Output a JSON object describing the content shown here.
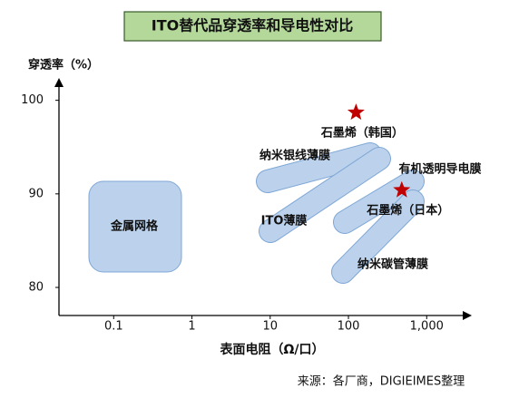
{
  "chart_data": {
    "type": "scatter",
    "title": "ITO替代品穿透率和导电性对比",
    "y_label": "穿透率（%）",
    "x_label": "表面电阻（Ω/口）",
    "source": "来源：各厂商，DIGIEIMES整理",
    "log_x": true,
    "xlim": [
      0.02,
      3300
    ],
    "ylim": [
      77,
      102
    ],
    "xticks": [
      0.1,
      1,
      10,
      100,
      {
        "value": 1000,
        "label": "1,000"
      }
    ],
    "yticks": [
      80,
      90,
      100
    ],
    "regions": [
      "金属网格",
      "纳米银线薄膜",
      "ITO薄膜",
      "有机透明导电膜",
      "纳米碳管薄膜"
    ],
    "series": [
      {
        "color": "#c00000",
        "labels": [
          "石墨烯（韩国）",
          "石墨烯（日本）"
        ],
        "x": [
          125,
          480
        ],
        "values": [
          98.7,
          90.4
        ]
      }
    ]
  }
}
